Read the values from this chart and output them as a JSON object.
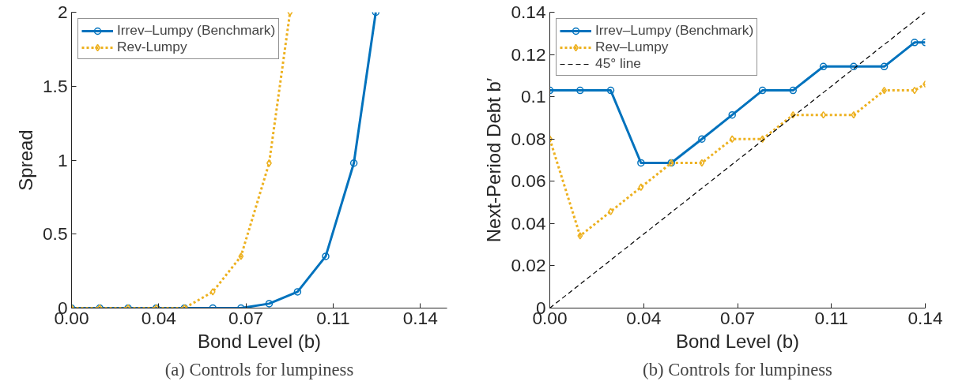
{
  "chart_data": [
    {
      "type": "line",
      "xlabel": "Bond Level (b)",
      "ylabel": "Spread",
      "annotations": [
        "(a) Controls for lumpiness"
      ],
      "xlim": [
        0,
        0.1507
      ],
      "ylim": [
        0,
        2
      ],
      "xticks": [
        {
          "value": 0,
          "label": "0.00"
        },
        {
          "value": 0.035,
          "label": "0.04"
        },
        {
          "value": 0.07,
          "label": "0.07"
        },
        {
          "value": 0.105,
          "label": "0.11"
        },
        {
          "value": 0.14,
          "label": "0.14"
        }
      ],
      "yticks": [
        0,
        0.5,
        1,
        1.5,
        2
      ],
      "grid": false,
      "legend": "top left",
      "series": [
        {
          "name": "Irrev–Lumpy (Benchmark)",
          "color": "#0072bd",
          "marker": "circle",
          "line_style": "solid",
          "x": [
            0,
            0.0113,
            0.0227,
            0.034,
            0.0453,
            0.0567,
            0.068,
            0.0793,
            0.0907,
            0.102,
            0.1133,
            0.1221
          ],
          "values": [
            0,
            0,
            0,
            0,
            0,
            0,
            0,
            0.03,
            0.11,
            0.35,
            0.98,
            2
          ]
        },
        {
          "name": "Rev-Lumpy",
          "color": "#edb120",
          "marker": "diamond",
          "line_style": "dotted",
          "x": [
            0,
            0.0113,
            0.0227,
            0.034,
            0.0453,
            0.0567,
            0.068,
            0.0793,
            0.0877
          ],
          "values": [
            0,
            0,
            0,
            0,
            0,
            0.11,
            0.35,
            0.98,
            2
          ]
        }
      ]
    },
    {
      "type": "line",
      "xlabel": "Bond Level (b)",
      "ylabel": "Next-Period Debt b′",
      "annotations": [
        "(b) Controls for lumpiness"
      ],
      "xlim": [
        0,
        0.14
      ],
      "ylim": [
        0,
        0.14
      ],
      "xticks": [
        {
          "value": 0,
          "label": "0.00"
        },
        {
          "value": 0.035,
          "label": "0.04"
        },
        {
          "value": 0.07,
          "label": "0.07"
        },
        {
          "value": 0.105,
          "label": "0.11"
        },
        {
          "value": 0.14,
          "label": "0.14"
        }
      ],
      "yticks": [
        0,
        0.02,
        0.04,
        0.06,
        0.08,
        0.1,
        0.12,
        0.14
      ],
      "grid": false,
      "legend": "top left",
      "series": [
        {
          "name": "Irrev–Lumpy (Benchmark)",
          "color": "#0072bd",
          "marker": "circle",
          "line_style": "solid",
          "x": [
            0,
            0.0113,
            0.0227,
            0.034,
            0.0453,
            0.0567,
            0.068,
            0.0793,
            0.0907,
            0.102,
            0.1133,
            0.1247,
            0.136,
            0.14
          ],
          "values": [
            0.103,
            0.103,
            0.103,
            0.0687,
            0.0687,
            0.08,
            0.0914,
            0.103,
            0.103,
            0.1143,
            0.1143,
            0.1143,
            0.1257,
            0.1257
          ]
        },
        {
          "name": "Rev–Lumpy",
          "color": "#edb120",
          "marker": "diamond",
          "line_style": "dotted",
          "x": [
            0,
            0.0113,
            0.0227,
            0.034,
            0.0453,
            0.0567,
            0.068,
            0.0793,
            0.0907,
            0.102,
            0.1133,
            0.1247,
            0.136,
            0.14
          ],
          "values": [
            0.08,
            0.0342,
            0.0457,
            0.0572,
            0.0687,
            0.0687,
            0.08,
            0.08,
            0.0914,
            0.0914,
            0.0914,
            0.103,
            0.103,
            0.106
          ]
        },
        {
          "name": "45° line",
          "color": "#000000",
          "marker": "none",
          "line_style": "dashed",
          "x": [
            0,
            0.14
          ],
          "values": [
            0,
            0.14
          ]
        }
      ]
    }
  ]
}
